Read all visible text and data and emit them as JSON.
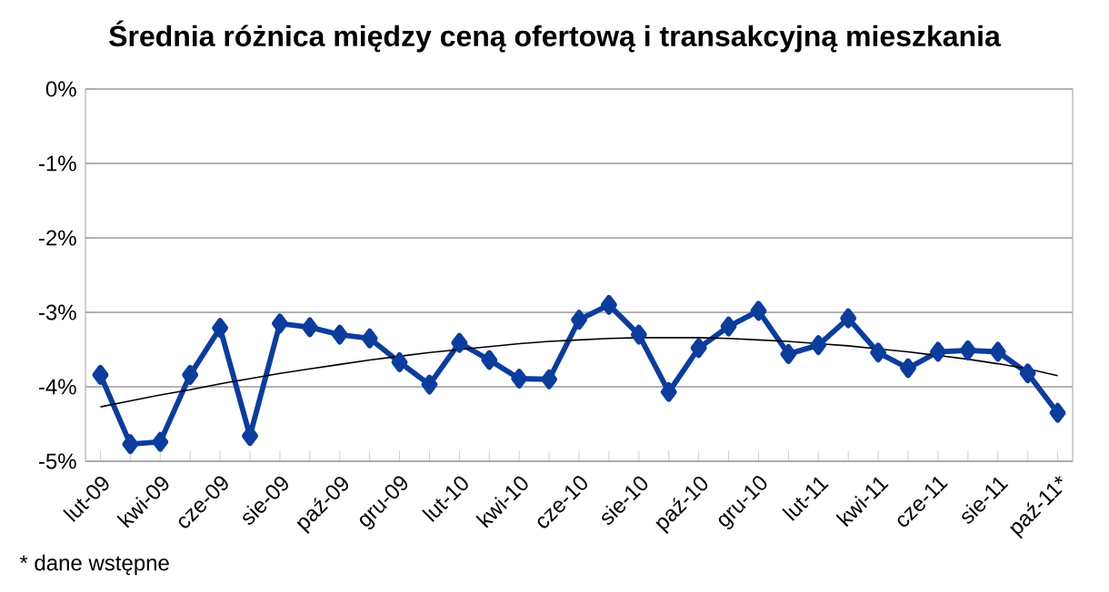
{
  "chart_data": {
    "type": "line",
    "title": "Średnia różnica między ceną ofertową i transakcyjną mieszkania",
    "categories": [
      "lut-09",
      null,
      "kwi-09",
      null,
      "cze-09",
      null,
      "sie-09",
      null,
      "paź-09",
      null,
      "gru-09",
      null,
      "lut-10",
      null,
      "kwi-10",
      null,
      "cze-10",
      null,
      "sie-10",
      null,
      "paź-10",
      null,
      "gru-10",
      null,
      "lut-11",
      null,
      "kwi-11",
      null,
      "cze-11",
      null,
      "sie-11",
      null,
      "paź-11*"
    ],
    "series": [
      {
        "color": "#0c3c9c",
        "marker": "diamond",
        "values": [
          -3.84,
          -4.77,
          -4.74,
          -3.84,
          -3.21,
          -4.66,
          -3.15,
          -3.2,
          -3.3,
          -3.35,
          -3.67,
          -3.97,
          -3.41,
          -3.64,
          -3.89,
          -3.9,
          -3.1,
          -2.9,
          -3.3,
          -4.07,
          -3.48,
          -3.19,
          -2.98,
          -3.56,
          -3.44,
          -3.08,
          -3.54,
          -3.75,
          -3.53,
          -3.51,
          -3.53,
          -3.82,
          -4.35
        ]
      },
      {
        "color": "#000000",
        "marker": "none",
        "values": [
          -4.27,
          -4.19,
          -4.11,
          -4.04,
          -3.96,
          -3.89,
          -3.82,
          -3.76,
          -3.7,
          -3.64,
          -3.59,
          -3.54,
          -3.5,
          -3.46,
          -3.42,
          -3.39,
          -3.37,
          -3.35,
          -3.34,
          -3.34,
          -3.34,
          -3.35,
          -3.37,
          -3.39,
          -3.42,
          -3.45,
          -3.49,
          -3.53,
          -3.58,
          -3.63,
          -3.69,
          -3.76,
          -3.85
        ]
      }
    ],
    "ylim": [
      -5,
      0
    ],
    "yticks": [
      {
        "value": -5,
        "label": "-5%"
      },
      {
        "value": -4,
        "label": "-4%"
      },
      {
        "value": -3,
        "label": "-3%"
      },
      {
        "value": -2,
        "label": "-2%"
      },
      {
        "value": -1,
        "label": "-1%"
      },
      {
        "value": 0,
        "label": "0%"
      }
    ],
    "grid": "y",
    "annotations": [
      "* dane wstępne"
    ]
  }
}
